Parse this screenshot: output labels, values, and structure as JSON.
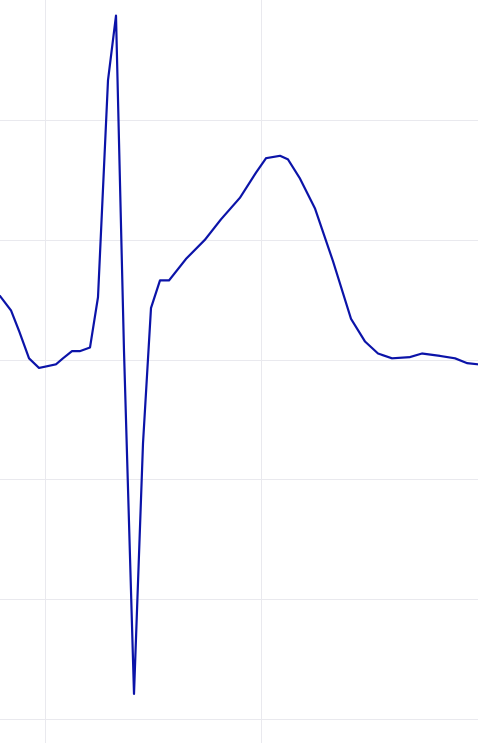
{
  "chart_data": {
    "type": "line",
    "title": "",
    "xlabel": "",
    "ylabel": "",
    "grid": true,
    "legend": "none",
    "xlim": [
      0,
      478
    ],
    "ylim": [
      -3.7,
      2.5
    ],
    "x_gridlines": [
      45,
      261
    ],
    "y_gridlines": [
      1.5,
      0.5,
      -0.5,
      -1.5,
      -2.5,
      -3.5
    ],
    "series": [
      {
        "color": "#0b13a8",
        "x": [
          0,
          11,
          19,
          29,
          39,
          45,
          56,
          63,
          72,
          80,
          90,
          98,
          108,
          116,
          124,
          134,
          143,
          151,
          160,
          169,
          186,
          205,
          221,
          240,
          256,
          266,
          280,
          288,
          300,
          315,
          333,
          351,
          365,
          378,
          392,
          410,
          422,
          440,
          455,
          467,
          478
        ],
        "y": [
          0.03,
          -0.09,
          -0.26,
          -0.49,
          -0.57,
          -0.56,
          -0.54,
          -0.49,
          -0.43,
          -0.43,
          -0.4,
          0.02,
          1.83,
          2.37,
          -0.43,
          -3.29,
          -1.2,
          -0.07,
          0.16,
          0.16,
          0.34,
          0.5,
          0.67,
          0.85,
          1.06,
          1.18,
          1.2,
          1.17,
          1.01,
          0.76,
          0.32,
          -0.16,
          -0.35,
          -0.45,
          -0.49,
          -0.48,
          -0.45,
          -0.47,
          -0.49,
          -0.53,
          -0.54
        ]
      }
    ]
  }
}
